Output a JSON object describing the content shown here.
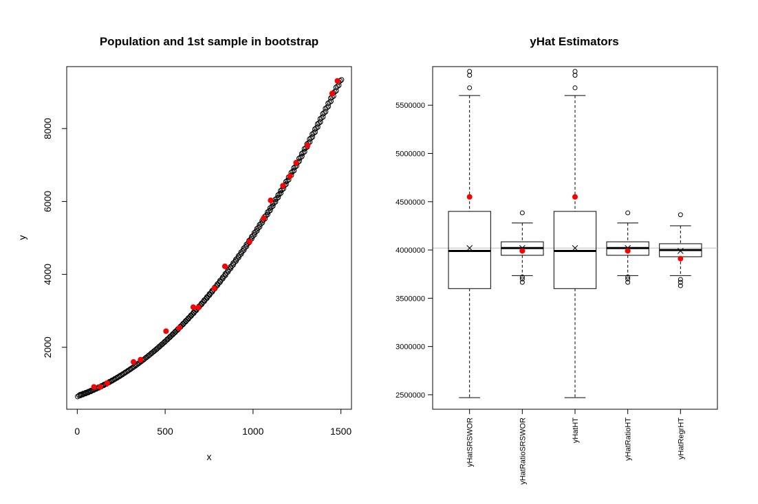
{
  "chart_data": [
    {
      "type": "scatter",
      "title": "Population and 1st sample in bootstrap",
      "xlabel": "x",
      "ylabel": "y",
      "xlim": [
        -60,
        1560
      ],
      "ylim": [
        300,
        9700
      ],
      "xticks": [
        0,
        500,
        1000,
        1500
      ],
      "yticks": [
        2000,
        4000,
        6000,
        8000
      ],
      "grid": false,
      "legend": "none",
      "series": [
        {
          "marker": "open-circle",
          "color": "#000000",
          "curve": "y = 660 + 1.6*x + 0.0028*x^2",
          "x": [
            10,
            25,
            40,
            55,
            70,
            85,
            100,
            115,
            130,
            145,
            160,
            175,
            190,
            205,
            220,
            235,
            250,
            265,
            280,
            295,
            310,
            325,
            340,
            355,
            370,
            385,
            400,
            415,
            430,
            445,
            460,
            475,
            490,
            505,
            520,
            535,
            550,
            565,
            580,
            595,
            610,
            625,
            640,
            655,
            670,
            685,
            700,
            715,
            730,
            745,
            760,
            775,
            790,
            805,
            820,
            835,
            850,
            865,
            880,
            895,
            910,
            925,
            940,
            955,
            970,
            985,
            1000,
            1015,
            1030,
            1045,
            1060,
            1075,
            1090,
            1105,
            1120,
            1135,
            1150,
            1165,
            1180,
            1195,
            1210,
            1225,
            1240,
            1255,
            1270,
            1285,
            1300,
            1315,
            1330,
            1345,
            1360,
            1375,
            1390,
            1405,
            1420,
            1435,
            1450,
            1465,
            1480,
            1495
          ],
          "y": [
            676,
            702,
            728,
            757,
            786,
            816,
            848,
            881,
            915,
            951,
            988,
            1026,
            1065,
            1106,
            1148,
            1191,
            1235,
            1281,
            1328,
            1376,
            1425,
            1476,
            1528,
            1581,
            1635,
            1691,
            1748,
            1806,
            1866,
            1926,
            1988,
            2052,
            2116,
            2182,
            2249,
            2318,
            2387,
            2458,
            2530,
            2603,
            2678,
            2754,
            2831,
            2909,
            2989,
            3070,
            3152,
            3235,
            3320,
            3406,
            3493,
            3582,
            3671,
            3762,
            3855,
            3948,
            4043,
            4139,
            4236,
            4335,
            4435,
            4536,
            4638,
            4742,
            4847,
            4953,
            5060,
            5169,
            5279,
            5390,
            5502,
            5616,
            5731,
            5847,
            5964,
            6083,
            6203,
            6324,
            6447,
            6570,
            6695,
            6821,
            6949,
            7077,
            7208,
            7339,
            7471,
            7605,
            7740,
            7876,
            8014,
            8153,
            8293,
            8434,
            8576,
            8720,
            8865,
            9011,
            9159,
            9308
          ]
        },
        {
          "marker": "filled-circle",
          "color": "#ff0000",
          "x": [
            95,
            130,
            170,
            320,
            360,
            505,
            580,
            660,
            690,
            780,
            840,
            980,
            1060,
            1100,
            1170,
            1210,
            1245,
            1310,
            1450,
            1480
          ],
          "y": [
            912,
            915,
            1014,
            1598,
            1658,
            2442,
            2530,
            3101,
            3092,
            3619,
            4220,
            4897,
            5540,
            6031,
            6433,
            6695,
            7064,
            7538,
            8962,
            9308
          ]
        }
      ]
    },
    {
      "type": "boxplot",
      "title": "yHat Estimators",
      "xlabel": "",
      "ylabel": "",
      "categories": [
        "yHatSRSWOR",
        "yHatRatioSRSWOR",
        "yHatHT",
        "yHatRatioHT",
        "yHatRegrHT"
      ],
      "ylim": [
        2350000,
        5900000
      ],
      "yticks": [
        2500000,
        3000000,
        3500000,
        4000000,
        4500000,
        5000000,
        5500000
      ],
      "ytick_labels": [
        "2500000",
        "3000000",
        "3500000",
        "4000000",
        "4500000",
        "5000000",
        "5500000"
      ],
      "reference_line": 4020000,
      "reference_line_color": "#c0c0c0",
      "boxes": [
        {
          "whisker_low": 2470000,
          "q1": 3600000,
          "median": 3990000,
          "q3": 4400000,
          "whisker_high": 5600000,
          "mean": 4020000,
          "outliers": [
            5680000,
            5810000,
            5850000
          ],
          "sample": 4550000
        },
        {
          "whisker_low": 3735000,
          "q1": 3945000,
          "median": 4020000,
          "q3": 4085000,
          "whisker_high": 4280000,
          "mean": 4020000,
          "outliers": [
            3665000,
            3700000,
            3720000,
            4385000
          ],
          "sample": 3990000
        },
        {
          "whisker_low": 2470000,
          "q1": 3600000,
          "median": 3990000,
          "q3": 4400000,
          "whisker_high": 5600000,
          "mean": 4020000,
          "outliers": [
            5680000,
            5810000,
            5850000
          ],
          "sample": 4550000
        },
        {
          "whisker_low": 3735000,
          "q1": 3945000,
          "median": 4020000,
          "q3": 4085000,
          "whisker_high": 4280000,
          "mean": 4020000,
          "outliers": [
            3665000,
            3700000,
            3720000,
            4385000
          ],
          "sample": 3990000
        },
        {
          "whisker_low": 3735000,
          "q1": 3930000,
          "median": 4000000,
          "q3": 4065000,
          "whisker_high": 4250000,
          "mean": 3990000,
          "outliers": [
            3630000,
            3665000,
            3695000,
            4365000
          ],
          "sample": 3910000
        }
      ]
    }
  ]
}
